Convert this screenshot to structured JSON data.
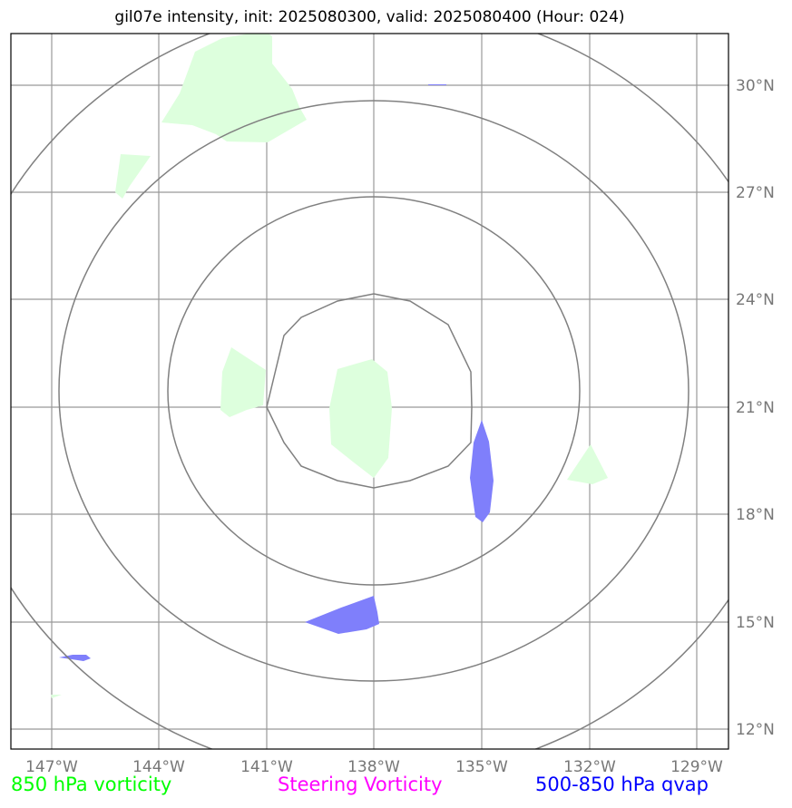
{
  "title": "gil07e intensity, init: 2025080300, valid: 2025080400 (Hour: 024)",
  "map": {
    "lon_labels": [
      "147°W",
      "144°W",
      "141°W",
      "138°W",
      "135°W",
      "132°W",
      "129°W"
    ],
    "lat_labels": [
      "30°N",
      "27°N",
      "24°N",
      "21°N",
      "18°N",
      "15°N",
      "12°N"
    ],
    "range_rings": 4,
    "gridline_color": "#999999",
    "ring_color": "#808080",
    "vorticity_850_color": "#ddffdd",
    "qvap_color": "#7f7ffb"
  },
  "legend": {
    "vorticity_850": "850 hPa vorticity",
    "vorticity_850_color": "#00ff00",
    "steering": "Steering Vorticity",
    "steering_color": "#ff00ff",
    "qvap": "500-850 hPa qvap",
    "qvap_color": "#0000ff"
  }
}
